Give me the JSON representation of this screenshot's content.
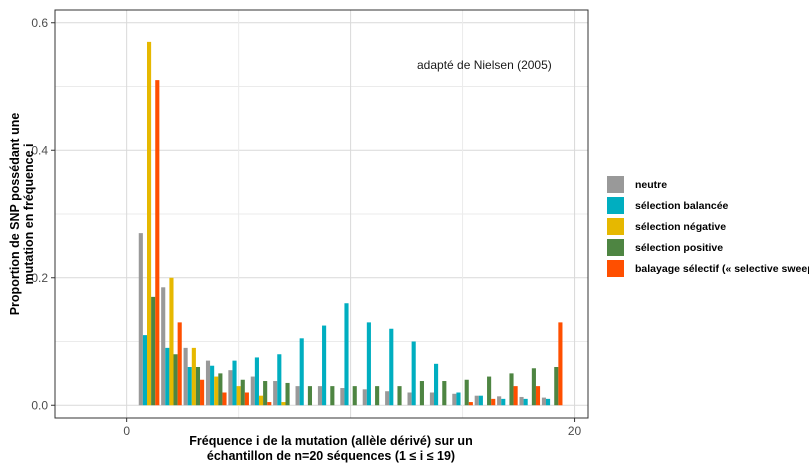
{
  "chart_data": {
    "type": "bar",
    "xlabel_line1": "Fréquence i de la mutation (allèle dérivé) sur un",
    "xlabel_line2": "échantillon de n=20 séquences (1 ≤ i ≤ 19)",
    "ylabel_line1": "Proportion de SNP possédant une",
    "ylabel_line2": "mutation en fréquence i",
    "annotation": "adapté de Nielsen (2005)",
    "xlim": [
      -3.2,
      20.6
    ],
    "ylim": [
      -0.02,
      0.62
    ],
    "x_ticks": [
      0,
      20
    ],
    "x_tick_labels": [
      "0",
      "20"
    ],
    "y_ticks": [
      0.0,
      0.2,
      0.4,
      0.6
    ],
    "y_tick_labels": [
      "0.0",
      "0.2",
      "0.4",
      "0.6"
    ],
    "grid": true,
    "legend_position": "right",
    "categories": [
      1,
      2,
      3,
      4,
      5,
      6,
      7,
      8,
      9,
      10,
      11,
      12,
      13,
      14,
      15,
      16,
      17,
      18,
      19
    ],
    "series": [
      {
        "name": "neutre",
        "color": "#999999",
        "values": [
          0.27,
          0.185,
          0.09,
          0.07,
          0.055,
          0.045,
          0.038,
          0.03,
          0.03,
          0.027,
          0.025,
          0.022,
          0.02,
          0.02,
          0.018,
          0.015,
          0.014,
          0.013,
          0.012
        ]
      },
      {
        "name": "sélection balancée",
        "color": "#00AEC0",
        "values": [
          0.11,
          0.09,
          0.06,
          0.062,
          0.07,
          0.075,
          0.08,
          0.105,
          0.125,
          0.16,
          0.13,
          0.12,
          0.1,
          0.065,
          0.02,
          0.015,
          0.01,
          0.01,
          0.01
        ]
      },
      {
        "name": "sélection négative",
        "color": "#E6B800",
        "values": [
          0.57,
          0.2,
          0.09,
          0.045,
          0.03,
          0.015,
          0.005,
          0,
          0,
          0,
          0,
          0,
          0,
          0,
          0,
          0,
          0,
          0,
          0
        ]
      },
      {
        "name": "sélection positive",
        "color": "#4E8542",
        "values": [
          0.17,
          0.08,
          0.06,
          0.05,
          0.04,
          0.038,
          0.035,
          0.03,
          0.03,
          0.03,
          0.03,
          0.03,
          0.038,
          0.038,
          0.04,
          0.045,
          0.05,
          0.058,
          0.06
        ]
      },
      {
        "name": "balayage sélectif (« selective sweep »)",
        "color": "#FF4F00",
        "values": [
          0.51,
          0.13,
          0.04,
          0.02,
          0.02,
          0.005,
          0,
          0,
          0,
          0,
          0,
          0,
          0,
          0,
          0.005,
          0.01,
          0.03,
          0.03,
          0.13
        ]
      }
    ]
  }
}
